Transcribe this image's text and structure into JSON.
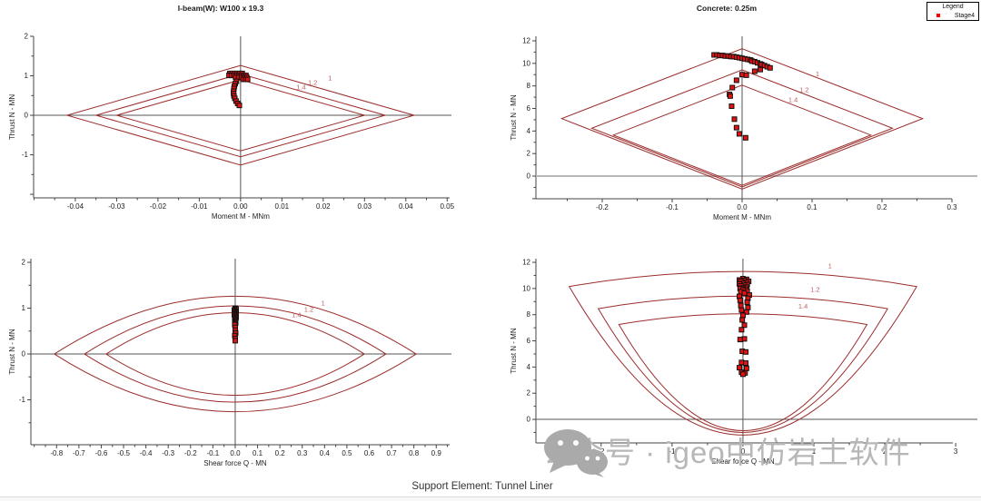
{
  "page": {
    "footer": "Support Element: Tunnel Liner",
    "watermark": "公众号 · igeo中仿岩土软件"
  },
  "legend": {
    "title": "Legend",
    "items": [
      {
        "label": "Stage4",
        "color": "#ff0000"
      }
    ]
  },
  "colors": {
    "envelope": "#9b2d2b",
    "envelope_label": "#c06060",
    "marker_fill": "#e31212",
    "marker_stroke": "#111111",
    "axis": "#444444",
    "zero_line": "#555555",
    "gray_zero_line": "#b8b8b8",
    "title_text": "#1a1a1a",
    "tick_text": "#222222"
  },
  "chart_data": [
    {
      "id": "ibeam-moment",
      "type": "scatter",
      "title": "I-beam(W): W100 x 19.3",
      "xlabel": "Moment M - MNm",
      "ylabel": "Thrust N - MN",
      "xlim": [
        -0.0501,
        0.0506
      ],
      "ylim": [
        -2.09,
        2.0
      ],
      "xticks": [
        {
          "v": -0.04,
          "l": "-0.04"
        },
        {
          "v": -0.03,
          "l": "-0.03"
        },
        {
          "v": -0.02,
          "l": "-0.02"
        },
        {
          "v": -0.01,
          "l": "-0.01"
        },
        {
          "v": 0,
          "l": "0.00"
        },
        {
          "v": 0.01,
          "l": "0.01"
        },
        {
          "v": 0.02,
          "l": "0.02"
        },
        {
          "v": 0.03,
          "l": "0.03"
        },
        {
          "v": 0.04,
          "l": "0.04"
        },
        {
          "v": 0.05,
          "l": "0.05"
        }
      ],
      "yticks": [
        {
          "v": 2,
          "l": "2"
        },
        {
          "v": 1,
          "l": "1"
        },
        {
          "v": 0,
          "l": "0"
        },
        {
          "v": -1,
          "l": "-1"
        },
        {
          "v": -2,
          "l": ""
        }
      ],
      "xminor": 0.005,
      "yminor": 0.5,
      "envelope_shape": "diamond",
      "envelopes": [
        {
          "label": "1",
          "m": 0.042,
          "n": 1.26
        },
        {
          "label": "1.2",
          "m": 0.035,
          "n": 1.05
        },
        {
          "label": "1.4",
          "m": 0.03,
          "n": 0.9
        }
      ],
      "envelope_labels": [
        {
          "text": "1.4",
          "x": 0.0135,
          "y": 0.66
        },
        {
          "text": "1.2",
          "x": 0.0163,
          "y": 0.77
        },
        {
          "text": "1",
          "x": 0.0212,
          "y": 0.89
        }
      ],
      "points": [
        [
          -0.0026,
          1.06
        ],
        [
          -0.002,
          1.06
        ],
        [
          -0.0014,
          1.06
        ],
        [
          -0.0008,
          1.06
        ],
        [
          -0.0002,
          1.06
        ],
        [
          0.0004,
          1.06
        ],
        [
          -0.0028,
          1.01
        ],
        [
          -0.0022,
          1.01
        ],
        [
          -0.0016,
          1.01
        ],
        [
          -0.001,
          1.01
        ],
        [
          -0.0004,
          1.01
        ],
        [
          0.0002,
          1.01
        ],
        [
          0.0008,
          1.01
        ],
        [
          0.0013,
          1.01
        ],
        [
          -0.0012,
          0.96
        ],
        [
          -0.0005,
          0.96
        ],
        [
          0.0002,
          0.96
        ],
        [
          0.0009,
          0.96
        ],
        [
          0.0015,
          0.96
        ],
        [
          0.0006,
          0.91
        ],
        [
          0.0012,
          0.91
        ],
        [
          0.0017,
          0.91
        ],
        [
          -0.001,
          0.86
        ],
        [
          -0.0013,
          0.8
        ],
        [
          -0.0015,
          0.74
        ],
        [
          -0.0016,
          0.68
        ],
        [
          -0.0017,
          0.61
        ],
        [
          -0.0017,
          0.55
        ],
        [
          -0.0016,
          0.49
        ],
        [
          -0.0014,
          0.43
        ],
        [
          -0.0011,
          0.36
        ],
        [
          -0.0007,
          0.3
        ],
        [
          -0.0003,
          0.25
        ]
      ]
    },
    {
      "id": "concrete-moment",
      "type": "scatter",
      "title": "Concrete: 0.25m",
      "xlabel": "Moment M - MNm",
      "ylabel": "Thrust N - MN",
      "xlim": [
        -0.2948,
        0.3
      ],
      "ylim": [
        -2.01,
        12.4
      ],
      "xticks": [
        {
          "v": -0.2,
          "l": "-0.2"
        },
        {
          "v": -0.1,
          "l": "-0.1"
        },
        {
          "v": 0,
          "l": "0.0"
        },
        {
          "v": 0.1,
          "l": "0.1"
        },
        {
          "v": 0.2,
          "l": "0.2"
        },
        {
          "v": 0.3,
          "l": "0.3"
        }
      ],
      "yticks": [
        {
          "v": 12,
          "l": "12"
        },
        {
          "v": 10,
          "l": "10"
        },
        {
          "v": 8,
          "l": "8"
        },
        {
          "v": 6,
          "l": "6"
        },
        {
          "v": 4,
          "l": "4"
        },
        {
          "v": 2,
          "l": "2"
        },
        {
          "v": 0,
          "l": "0"
        },
        {
          "v": -2,
          "l": ""
        }
      ],
      "xminor": 0.05,
      "yminor": 1,
      "envelope_shape": "diamond_skew",
      "envelopes": [
        {
          "label": "1",
          "m": 0.258,
          "n_top": 11.3,
          "n_side": 5.1,
          "n_bot": -1.15
        },
        {
          "label": "1.2",
          "m": 0.215,
          "n_top": 9.42,
          "n_side": 4.25,
          "n_bot": -0.96
        },
        {
          "label": "1.4",
          "m": 0.184,
          "n_top": 8.07,
          "n_side": 3.64,
          "n_bot": -0.82
        }
      ],
      "envelope_labels": [
        {
          "text": "1.4",
          "x": 0.066,
          "y": 6.55
        },
        {
          "text": "1.2",
          "x": 0.082,
          "y": 7.45
        },
        {
          "text": "1",
          "x": 0.105,
          "y": 8.85
        }
      ],
      "points": [
        [
          -0.04,
          10.75
        ],
        [
          -0.036,
          10.75
        ],
        [
          -0.032,
          10.7
        ],
        [
          -0.028,
          10.7
        ],
        [
          -0.024,
          10.65
        ],
        [
          -0.02,
          10.65
        ],
        [
          -0.016,
          10.6
        ],
        [
          -0.012,
          10.6
        ],
        [
          -0.008,
          10.55
        ],
        [
          -0.004,
          10.5
        ],
        [
          0.0,
          10.45
        ],
        [
          0.004,
          10.4
        ],
        [
          0.008,
          10.35
        ],
        [
          0.012,
          10.3
        ],
        [
          0.014,
          10.2
        ],
        [
          0.018,
          10.15
        ],
        [
          0.022,
          10.05
        ],
        [
          0.026,
          9.95
        ],
        [
          0.028,
          9.9
        ],
        [
          0.032,
          9.8
        ],
        [
          0.036,
          9.7
        ],
        [
          0.04,
          9.6
        ],
        [
          0.026,
          9.45
        ],
        [
          0.018,
          9.3
        ],
        [
          0.0,
          9.0
        ],
        [
          0.006,
          8.95
        ],
        [
          -0.008,
          8.5
        ],
        [
          -0.014,
          7.85
        ],
        [
          -0.018,
          7.25
        ],
        [
          -0.017,
          7.1
        ],
        [
          -0.015,
          6.2
        ],
        [
          -0.011,
          5.05
        ],
        [
          -0.008,
          4.3
        ],
        [
          -0.004,
          3.75
        ],
        [
          0.005,
          3.4
        ]
      ]
    },
    {
      "id": "ibeam-shear",
      "type": "scatter",
      "title": "",
      "xlabel": "Shear force Q - MN",
      "ylabel": "Thrust N - MN",
      "xlim": [
        -0.915,
        0.96
      ],
      "ylim": [
        -1.98,
        2.08
      ],
      "xticks": [
        {
          "v": -0.8,
          "l": "-0.8"
        },
        {
          "v": -0.7,
          "l": "-0.7"
        },
        {
          "v": -0.6,
          "l": "-0.6"
        },
        {
          "v": -0.5,
          "l": "-0.5"
        },
        {
          "v": -0.4,
          "l": "-0.4"
        },
        {
          "v": -0.3,
          "l": "-0.3"
        },
        {
          "v": -0.2,
          "l": "-0.2"
        },
        {
          "v": -0.1,
          "l": "-0.1"
        },
        {
          "v": 0,
          "l": "0.0"
        },
        {
          "v": 0.1,
          "l": "0.1"
        },
        {
          "v": 0.2,
          "l": "0.2"
        },
        {
          "v": 0.3,
          "l": "0.3"
        },
        {
          "v": 0.4,
          "l": "0.4"
        },
        {
          "v": 0.5,
          "l": "0.5"
        },
        {
          "v": 0.6,
          "l": "0.6"
        },
        {
          "v": 0.7,
          "l": "0.7"
        },
        {
          "v": 0.8,
          "l": "0.8"
        },
        {
          "v": 0.9,
          "l": "0.9"
        }
      ],
      "yticks": [
        {
          "v": 2,
          "l": "2"
        },
        {
          "v": 1,
          "l": "1"
        },
        {
          "v": 0,
          "l": "0"
        },
        {
          "v": -1,
          "l": "-1"
        }
      ],
      "xminor": 0.05,
      "yminor": 0.5,
      "envelope_shape": "lens",
      "envelopes": [
        {
          "label": "1",
          "q": 0.81,
          "n": 1.26
        },
        {
          "label": "1.2",
          "q": 0.675,
          "n": 1.05
        },
        {
          "label": "1.4",
          "q": 0.578,
          "n": 0.9
        }
      ],
      "envelope_labels": [
        {
          "text": "1.4",
          "x": 0.253,
          "y": 0.8
        },
        {
          "text": "1.2",
          "x": 0.308,
          "y": 0.92
        },
        {
          "text": "1",
          "x": 0.385,
          "y": 1.06
        }
      ],
      "points": [
        [
          0,
          1.0
        ],
        [
          0.004,
          0.98
        ],
        [
          -0.004,
          0.96
        ],
        [
          0.002,
          0.94
        ],
        [
          -0.002,
          0.92
        ],
        [
          0.004,
          0.9
        ],
        [
          0,
          0.88
        ],
        [
          -0.004,
          0.86
        ],
        [
          0.002,
          0.84
        ],
        [
          -0.002,
          0.82
        ],
        [
          0.004,
          0.8
        ],
        [
          0,
          0.78
        ],
        [
          -0.002,
          0.76
        ],
        [
          0.002,
          0.74
        ],
        [
          0,
          0.72
        ],
        [
          -0.002,
          0.7
        ],
        [
          0.002,
          0.68
        ],
        [
          0,
          0.66
        ],
        [
          -0.002,
          0.64
        ],
        [
          0,
          0.58
        ],
        [
          0,
          0.52
        ],
        [
          0.002,
          0.46
        ],
        [
          -0.002,
          0.4
        ],
        [
          0,
          0.34
        ],
        [
          0,
          0.29
        ]
      ]
    },
    {
      "id": "concrete-shear",
      "type": "scatter",
      "title": "",
      "xlabel": "Shear force Q - MN",
      "ylabel": "Thrust N - MN",
      "xlim": [
        -2.92,
        2.96
      ],
      "ylim": [
        -1.8,
        12.28
      ],
      "xticks": [
        {
          "v": -2,
          "l": "-2"
        },
        {
          "v": -1,
          "l": "-1"
        },
        {
          "v": 0,
          "l": "0"
        },
        {
          "v": 1,
          "l": "1"
        },
        {
          "v": 2,
          "l": "2"
        },
        {
          "v": 3,
          "l": "3"
        }
      ],
      "yticks": [
        {
          "v": 12,
          "l": "12"
        },
        {
          "v": 10,
          "l": "10"
        },
        {
          "v": 8,
          "l": "8"
        },
        {
          "v": 6,
          "l": "6"
        },
        {
          "v": 4,
          "l": "4"
        },
        {
          "v": 2,
          "l": "2"
        },
        {
          "v": 0,
          "l": "0"
        }
      ],
      "xminor": 0.5,
      "yminor": 1,
      "envelope_shape": "fan",
      "envelopes": [
        {
          "label": "1",
          "q": 2.45,
          "n_corner": 10.15,
          "n_top": 11.3,
          "n_bot": -1.2
        },
        {
          "label": "1.2",
          "q": 2.04,
          "n_corner": 8.46,
          "n_top": 9.42,
          "n_bot": -1.0
        },
        {
          "label": "1.4",
          "q": 1.75,
          "n_corner": 7.25,
          "n_top": 8.07,
          "n_bot": -0.86
        }
      ],
      "envelope_labels": [
        {
          "text": "1.4",
          "x": 0.78,
          "y": 8.45
        },
        {
          "text": "1.2",
          "x": 0.95,
          "y": 9.75
        },
        {
          "text": "1",
          "x": 1.2,
          "y": 11.55
        }
      ],
      "points": [
        [
          0.0,
          10.75
        ],
        [
          0.05,
          10.7
        ],
        [
          -0.05,
          10.65
        ],
        [
          0.02,
          10.6
        ],
        [
          0.08,
          10.55
        ],
        [
          -0.03,
          10.55
        ],
        [
          0.05,
          10.45
        ],
        [
          0.0,
          10.4
        ],
        [
          -0.05,
          10.35
        ],
        [
          0.06,
          10.3
        ],
        [
          0.02,
          10.25
        ],
        [
          -0.03,
          10.2
        ],
        [
          0.05,
          10.1
        ],
        [
          0.0,
          10.05
        ],
        [
          -0.04,
          10.0
        ],
        [
          0.04,
          9.95
        ],
        [
          0.0,
          9.9
        ],
        [
          0.06,
          9.8
        ],
        [
          -0.03,
          9.75
        ],
        [
          0.02,
          9.65
        ],
        [
          0.09,
          9.5
        ],
        [
          -0.05,
          9.4
        ],
        [
          0.07,
          9.25
        ],
        [
          -0.04,
          9.1
        ],
        [
          0.06,
          8.95
        ],
        [
          -0.03,
          8.7
        ],
        [
          0.07,
          8.55
        ],
        [
          -0.02,
          8.35
        ],
        [
          0.05,
          8.2
        ],
        [
          0.0,
          7.95
        ],
        [
          -0.01,
          7.6
        ],
        [
          0.02,
          7.2
        ],
        [
          -0.02,
          6.85
        ],
        [
          0.02,
          6.15
        ],
        [
          -0.04,
          6.1
        ],
        [
          -0.01,
          5.2
        ],
        [
          0.04,
          5.15
        ],
        [
          -0.02,
          4.35
        ],
        [
          0.04,
          4.3
        ],
        [
          -0.05,
          3.95
        ],
        [
          0.05,
          3.9
        ],
        [
          -0.02,
          3.6
        ],
        [
          0.03,
          3.55
        ],
        [
          0.0,
          3.45
        ]
      ]
    }
  ]
}
